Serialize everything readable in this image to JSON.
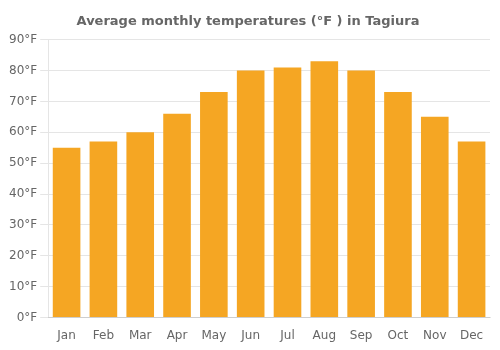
{
  "chart_data": {
    "type": "bar",
    "title": "Average monthly temperatures (°F ) in Tagiura",
    "categories": [
      "Jan",
      "Feb",
      "Mar",
      "Apr",
      "May",
      "Jun",
      "Jul",
      "Aug",
      "Sep",
      "Oct",
      "Nov",
      "Dec"
    ],
    "values": [
      55,
      57,
      60,
      66,
      73,
      80,
      81,
      83,
      80,
      73,
      65,
      57
    ],
    "color": "#F5A623",
    "ylim": [
      0,
      90
    ],
    "yticks": [
      {
        "value": 0,
        "label": "0°F"
      },
      {
        "value": 10,
        "label": "10°F"
      },
      {
        "value": 20,
        "label": "20°F"
      },
      {
        "value": 30,
        "label": "30°F"
      },
      {
        "value": 40,
        "label": "40°F"
      },
      {
        "value": 50,
        "label": "50°F"
      },
      {
        "value": 60,
        "label": "60°F"
      },
      {
        "value": 70,
        "label": "70°F"
      },
      {
        "value": 80,
        "label": "80°F"
      },
      {
        "value": 90,
        "label": "90°F"
      }
    ],
    "grid": true
  }
}
